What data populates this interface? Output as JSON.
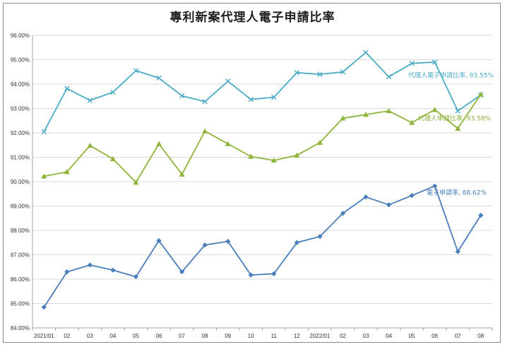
{
  "chart_data": {
    "type": "line",
    "title": "專利新案代理人電子申請比率",
    "xlabel": "",
    "ylabel": "",
    "categories": [
      "2021/01",
      "02",
      "03",
      "04",
      "05",
      "06",
      "07",
      "08",
      "09",
      "10",
      "11",
      "12",
      "2022/01",
      "02",
      "03",
      "04",
      "05",
      "06",
      "07",
      "08"
    ],
    "ylim": [
      84,
      96
    ],
    "yticks": [
      "84.00%",
      "85.00%",
      "86.00%",
      "87.00%",
      "88.00%",
      "89.00%",
      "90.00%",
      "91.00%",
      "92.00%",
      "93.00%",
      "94.00%",
      "95.00%",
      "96.00%"
    ],
    "grid": "horizontal",
    "series": [
      {
        "key": "agent_e",
        "label": "代理人電子申請比率, 93.55%",
        "color": "#4bacc6",
        "marker": "x",
        "values": [
          92.05,
          93.82,
          93.33,
          93.67,
          94.55,
          94.25,
          93.52,
          93.28,
          94.12,
          93.37,
          93.46,
          94.47,
          94.4,
          94.5,
          95.3,
          94.3,
          94.85,
          94.9,
          92.9,
          93.55
        ]
      },
      {
        "key": "agent",
        "label": "代理人申請比率, 93.58%",
        "color": "#8eb43a",
        "marker": "triangle",
        "values": [
          90.22,
          90.4,
          91.48,
          90.93,
          89.97,
          91.55,
          90.3,
          92.07,
          91.55,
          91.03,
          90.87,
          91.08,
          91.6,
          92.6,
          92.75,
          92.9,
          92.42,
          92.95,
          92.18,
          93.58
        ]
      },
      {
        "key": "e",
        "label": "電子申請率, 88.62%",
        "color": "#4a7ebb",
        "marker": "diamond",
        "values": [
          84.85,
          86.3,
          86.58,
          86.37,
          86.1,
          87.58,
          86.3,
          87.4,
          87.55,
          86.17,
          86.22,
          87.5,
          87.75,
          88.7,
          89.37,
          89.05,
          89.43,
          89.82,
          87.13,
          88.62
        ]
      }
    ]
  }
}
